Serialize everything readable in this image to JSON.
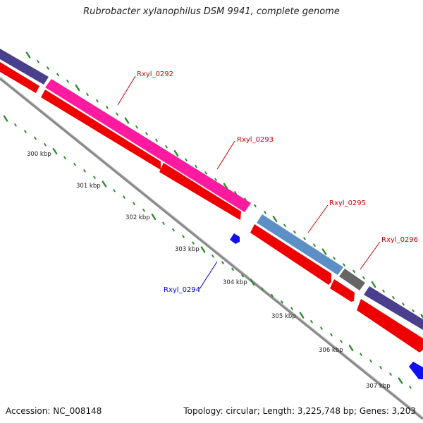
{
  "title": "Rubrobacter xylanophilus DSM 9941, complete genome",
  "footer": {
    "accession": "Accession: NC_008148",
    "summary": "Topology: circular; Length: 3,225,748 bp; Genes: 3,203"
  },
  "colors": {
    "backbone": "#8a8a8a",
    "forward_label": "#cc0000",
    "reverse_label": "#0000cc",
    "tick": "#2e8b2e",
    "cds_red": "#ee0000",
    "magenta": "#ff1aa0",
    "purple": "#4a3f8c",
    "steelblue": "#5b8fc5",
    "grey": "#666666",
    "blue": "#1010ee"
  },
  "scale_labels": [
    "300 kbp",
    "301 kbp",
    "302 kbp",
    "303 kbp",
    "304 kbp",
    "305 kbp",
    "306 kbp",
    "307 kbp"
  ],
  "genes": [
    {
      "label": "Rxyl_0292",
      "strand": "forward"
    },
    {
      "label": "Rxyl_0293",
      "strand": "forward"
    },
    {
      "label": "Rxyl_0294",
      "strand": "reverse"
    },
    {
      "label": "Rxyl_0295",
      "strand": "forward"
    },
    {
      "label": "Rxyl_0296",
      "strand": "forward"
    }
  ]
}
